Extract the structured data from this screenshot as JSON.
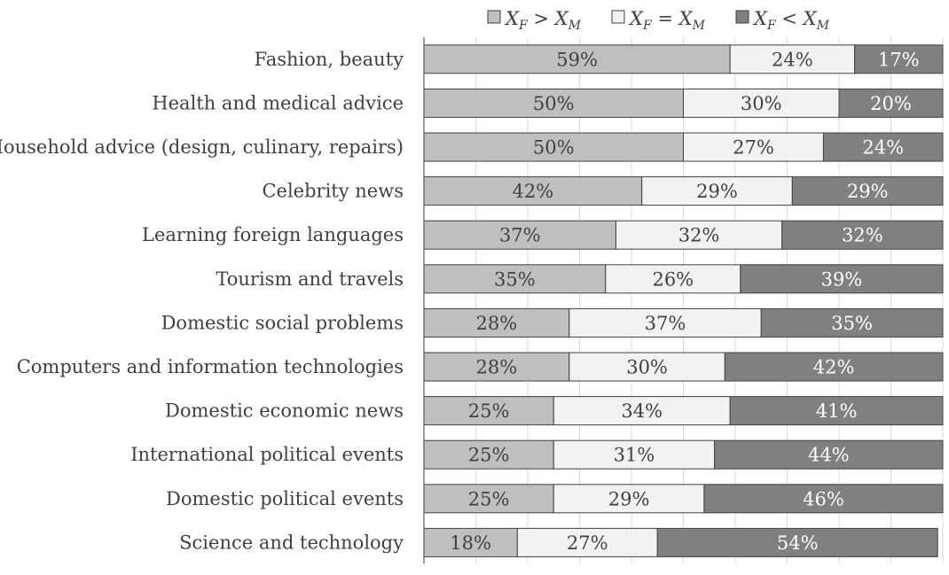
{
  "chart_data": {
    "type": "bar",
    "orientation": "horizontal",
    "stacked": true,
    "normalized_100": true,
    "categories": [
      "Fashion, beauty",
      "Health and medical advice",
      "Household advice (design, culinary, repairs)",
      "Celebrity news",
      "Learning foreign languages",
      "Tourism and travels",
      "Domestic social problems",
      "Computers and information technologies",
      "Domestic economic news",
      "International political events",
      "Domestic political events",
      "Science and technology"
    ],
    "series": [
      {
        "name": "X_F > X_M",
        "name_parts": {
          "a": "X",
          "a_sub": "F",
          "op": ">",
          "b": "X",
          "b_sub": "M"
        },
        "color": "#bfbfbf",
        "label_color": "#404040",
        "values": [
          59,
          50,
          50,
          42,
          37,
          35,
          28,
          28,
          25,
          25,
          25,
          18
        ],
        "labels": [
          "59%",
          "50%",
          "50%",
          "42%",
          "37%",
          "35%",
          "28%",
          "28%",
          "25%",
          "25%",
          "25%",
          "18%"
        ]
      },
      {
        "name": "X_F = X_M",
        "name_parts": {
          "a": "X",
          "a_sub": "F",
          "op": "=",
          "b": "X",
          "b_sub": "M"
        },
        "color": "#f2f2f2",
        "label_color": "#404040",
        "values": [
          24,
          30,
          27,
          29,
          32,
          26,
          37,
          30,
          34,
          31,
          29,
          27
        ],
        "labels": [
          "24%",
          "30%",
          "27%",
          "29%",
          "32%",
          "26%",
          "37%",
          "30%",
          "34%",
          "31%",
          "29%",
          "27%"
        ]
      },
      {
        "name": "X_F < X_M",
        "name_parts": {
          "a": "X",
          "a_sub": "F",
          "op": "<",
          "b": "X",
          "b_sub": "M"
        },
        "color": "#808080",
        "label_color": "#ffffff",
        "values": [
          17,
          20,
          24,
          29,
          32,
          39,
          35,
          42,
          41,
          44,
          46,
          54
        ],
        "labels": [
          "17%",
          "20%",
          "24%",
          "29%",
          "32%",
          "39%",
          "35%",
          "42%",
          "41%",
          "44%",
          "46%",
          "54%"
        ]
      }
    ],
    "xlim": [
      0,
      100
    ],
    "grid": true,
    "legend_position": "top"
  }
}
